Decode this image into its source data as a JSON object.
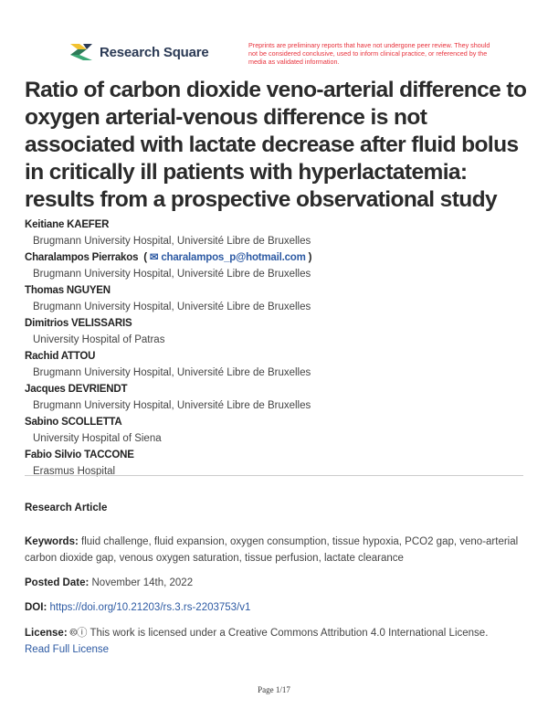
{
  "header": {
    "brand": "Research Square",
    "notice": "Preprints are preliminary reports that have not undergone peer review. They should not be considered conclusive, used to inform clinical practice, or referenced by the media as validated information."
  },
  "title": "Ratio of carbon dioxide veno-arterial difference to oxygen arterial-venous difference is not associated with lactate decrease after fluid bolus in critically ill patients with hyperlactatemia: results from a prospective observational study",
  "authors": [
    {
      "name": "Keitiane KAEFER",
      "affiliation": "Brugmann University Hospital, Université Libre de Bruxelles"
    },
    {
      "name": "Charalampos Pierrakos",
      "email": "charalampos_p@hotmail.com",
      "affiliation": "Brugmann University Hospital, Université Libre de Bruxelles"
    },
    {
      "name": "Thomas NGUYEN",
      "affiliation": "Brugmann University Hospital, Université Libre de Bruxelles"
    },
    {
      "name": "Dimitrios VELISSARIS",
      "affiliation": "University Hospital of Patras"
    },
    {
      "name": "Rachid ATTOU",
      "affiliation": "Brugmann University Hospital, Université Libre de Bruxelles"
    },
    {
      "name": "Jacques DEVRIENDT",
      "affiliation": "Brugmann University Hospital, Université Libre de Bruxelles"
    },
    {
      "name": "Sabino SCOLLETTA",
      "affiliation": "University Hospital of Siena"
    },
    {
      "name": "Fabio Silvio TACCONE",
      "affiliation": "Erasmus Hospital"
    }
  ],
  "article_type": "Research Article",
  "keywords": {
    "label": "Keywords:",
    "value": "fluid challenge, fluid expansion, oxygen consumption, tissue hypoxia, PCO2 gap, veno-arterial carbon dioxide gap, venous oxygen saturation, tissue perfusion, lactate clearance"
  },
  "posted": {
    "label": "Posted Date:",
    "value": "November 14th, 2022"
  },
  "doi": {
    "label": "DOI:",
    "value": "https://doi.org/10.21203/rs.3.rs-2203753/v1"
  },
  "license": {
    "label": "License:",
    "icons": [
      "cc-icon",
      "by-icon"
    ],
    "value": "This work is licensed under a Creative Commons Attribution 4.0 International License.",
    "link": "Read Full License"
  },
  "footer": {
    "page": "Page 1/17"
  },
  "colors": {
    "accent_link": "#2d5aa3",
    "notice_red": "#e8323c",
    "brand_navy": "#2b3a55"
  }
}
